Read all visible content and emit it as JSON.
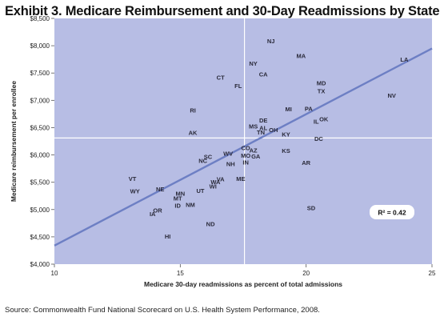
{
  "title": "Exhibit 3. Medicare Reimbursement and 30-Day Readmissions by State",
  "source": "Source: Commonwealth Fund National Scorecard on U.S. Health System Performance, 2008.",
  "colors": {
    "plot_bg": "#b7bde4",
    "trend": "#6d7fc4",
    "divider": "#ffffff"
  },
  "chart_data": {
    "type": "scatter",
    "xlabel": "Medicare 30-day readmissions as percent of total admissions",
    "ylabel": "Medicare reimbursement per enrollee",
    "xlim": [
      10,
      25
    ],
    "ylim": [
      4000,
      8500
    ],
    "xticks": [
      "10",
      "15",
      "20",
      "25"
    ],
    "yticks": [
      "$4,000",
      "$4,500",
      "$5,000",
      "$5,500",
      "$6,000",
      "$6,500",
      "$7,000",
      "$7,500",
      "$8,000",
      "$8,500"
    ],
    "annotation": "R² = 0.42",
    "trendline": {
      "x": [
        10,
        25
      ],
      "y": [
        4340,
        7950
      ]
    },
    "divider": {
      "x": 17.55,
      "y": 6310
    },
    "grid": false,
    "points": [
      {
        "label": "NJ",
        "x": 18.6,
        "y": 8090
      },
      {
        "label": "MA",
        "x": 19.8,
        "y": 7820
      },
      {
        "label": "LA",
        "x": 23.9,
        "y": 7750
      },
      {
        "label": "NY",
        "x": 17.9,
        "y": 7680
      },
      {
        "label": "CA",
        "x": 18.3,
        "y": 7480
      },
      {
        "label": "CT",
        "x": 16.6,
        "y": 7420
      },
      {
        "label": "MD",
        "x": 20.6,
        "y": 7320
      },
      {
        "label": "FL",
        "x": 17.3,
        "y": 7270
      },
      {
        "label": "TX",
        "x": 20.6,
        "y": 7170
      },
      {
        "label": "NV",
        "x": 23.4,
        "y": 7090
      },
      {
        "label": "RI",
        "x": 15.5,
        "y": 6820
      },
      {
        "label": "MI",
        "x": 19.3,
        "y": 6840
      },
      {
        "label": "PA",
        "x": 20.1,
        "y": 6850
      },
      {
        "label": "DE",
        "x": 18.3,
        "y": 6640
      },
      {
        "label": "OK",
        "x": 20.7,
        "y": 6660
      },
      {
        "label": "IL",
        "x": 20.4,
        "y": 6620
      },
      {
        "label": "MS",
        "x": 17.9,
        "y": 6530
      },
      {
        "label": "AL",
        "x": 18.3,
        "y": 6500
      },
      {
        "label": "OH",
        "x": 18.7,
        "y": 6460
      },
      {
        "label": "TN",
        "x": 18.2,
        "y": 6420
      },
      {
        "label": "AK",
        "x": 15.5,
        "y": 6410
      },
      {
        "label": "KY",
        "x": 19.2,
        "y": 6380
      },
      {
        "label": "DC",
        "x": 20.5,
        "y": 6300
      },
      {
        "label": "CO",
        "x": 17.6,
        "y": 6130
      },
      {
        "label": "AZ",
        "x": 17.9,
        "y": 6090
      },
      {
        "label": "KS",
        "x": 19.2,
        "y": 6080
      },
      {
        "label": "WV",
        "x": 16.9,
        "y": 6030
      },
      {
        "label": "MO",
        "x": 17.6,
        "y": 5990
      },
      {
        "label": "GA",
        "x": 18.0,
        "y": 5980
      },
      {
        "label": "SC",
        "x": 16.1,
        "y": 5970
      },
      {
        "label": "NC",
        "x": 15.9,
        "y": 5900
      },
      {
        "label": "IN",
        "x": 17.6,
        "y": 5870
      },
      {
        "label": "NH",
        "x": 17.0,
        "y": 5840
      },
      {
        "label": "AR",
        "x": 20.0,
        "y": 5860
      },
      {
        "label": "VT",
        "x": 13.1,
        "y": 5570
      },
      {
        "label": "ME",
        "x": 17.4,
        "y": 5570
      },
      {
        "label": "VA",
        "x": 16.6,
        "y": 5560
      },
      {
        "label": "WA",
        "x": 16.4,
        "y": 5510
      },
      {
        "label": "WI",
        "x": 16.3,
        "y": 5430
      },
      {
        "label": "NE",
        "x": 14.2,
        "y": 5380
      },
      {
        "label": "WY",
        "x": 13.2,
        "y": 5340
      },
      {
        "label": "UT",
        "x": 15.8,
        "y": 5350
      },
      {
        "label": "MN",
        "x": 15.0,
        "y": 5300
      },
      {
        "label": "MT",
        "x": 14.9,
        "y": 5210
      },
      {
        "label": "NM",
        "x": 15.4,
        "y": 5090
      },
      {
        "label": "ID",
        "x": 14.9,
        "y": 5080
      },
      {
        "label": "SD",
        "x": 20.2,
        "y": 5030
      },
      {
        "label": "OR",
        "x": 14.1,
        "y": 4990
      },
      {
        "label": "IA",
        "x": 13.9,
        "y": 4920
      },
      {
        "label": "ND",
        "x": 16.2,
        "y": 4740
      },
      {
        "label": "HI",
        "x": 14.5,
        "y": 4510
      }
    ]
  }
}
